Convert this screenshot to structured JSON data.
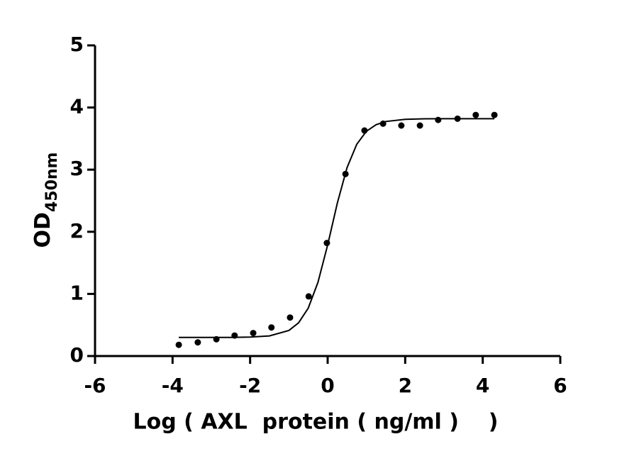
{
  "chart_data": {
    "type": "scatter",
    "x_label": "Log ( AXL  protein ( ng/ml )    )",
    "y_label": "OD",
    "y_label_subscript": "450nm",
    "xlim": [
      -6,
      6
    ],
    "xticks": [
      -6,
      -4,
      -2,
      0,
      2,
      4,
      6
    ],
    "ylim": [
      0,
      5
    ],
    "yticks": [
      0,
      1,
      2,
      3,
      4,
      5
    ],
    "series": [
      {
        "type": "scatter",
        "color": "#000000",
        "x": [
          -3.84,
          -3.35,
          -2.87,
          -2.4,
          -1.92,
          -1.45,
          -0.97,
          -0.49,
          -0.02,
          0.46,
          0.95,
          1.43,
          1.9,
          2.38,
          2.85,
          3.35,
          3.82,
          4.3
        ],
        "values": [
          0.18,
          0.22,
          0.27,
          0.33,
          0.37,
          0.46,
          0.62,
          0.96,
          1.82,
          2.93,
          3.63,
          3.74,
          3.71,
          3.71,
          3.8,
          3.82,
          3.88,
          3.88
        ]
      },
      {
        "type": "line",
        "color": "#000000",
        "x": [
          -3.84,
          -3,
          -2.5,
          -2,
          -1.5,
          -1,
          -0.75,
          -0.5,
          -0.25,
          0,
          0.25,
          0.5,
          0.75,
          1,
          1.25,
          1.5,
          2,
          2.5,
          3,
          4.3
        ],
        "values": [
          0.3,
          0.3,
          0.3,
          0.305,
          0.324,
          0.412,
          0.534,
          0.772,
          1.187,
          1.788,
          2.463,
          3.033,
          3.408,
          3.618,
          3.724,
          3.775,
          3.81,
          3.818,
          3.82,
          3.82
        ]
      }
    ]
  }
}
